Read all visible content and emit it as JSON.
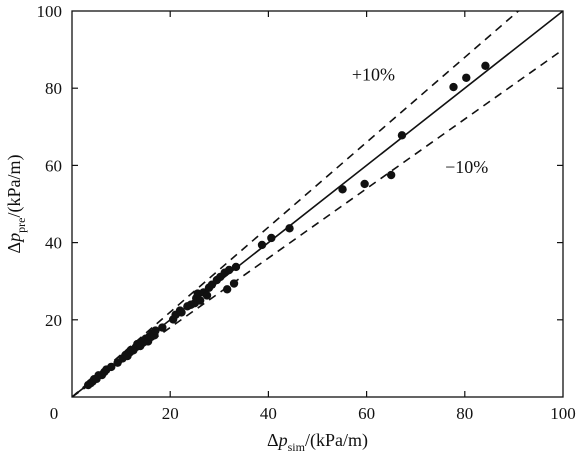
{
  "chart_data": {
    "type": "scatter",
    "title": "",
    "xlabel": {
      "prefix": "Δ",
      "var": "p",
      "sub": "sim",
      "suffix": "/(kPa/m)"
    },
    "ylabel": {
      "prefix": "Δ",
      "var": "p",
      "sub": "pre",
      "suffix": "/(kPa/m)"
    },
    "xlim": [
      0,
      100
    ],
    "ylim": [
      0,
      100
    ],
    "xticks": [
      0,
      20,
      40,
      60,
      80,
      100
    ],
    "yticks": [
      20,
      40,
      60,
      80,
      100
    ],
    "origin_label": "0",
    "grid": false,
    "reference_lines": [
      {
        "name": "y=x",
        "slope": 1.0,
        "style": "solid",
        "label": ""
      },
      {
        "name": "plus10",
        "slope": 1.1,
        "style": "dashed",
        "label": "+10%",
        "label_at": [
          57,
          82
        ]
      },
      {
        "name": "minus10",
        "slope": 0.9,
        "style": "dashed",
        "label": "−10%",
        "label_at": [
          76,
          58
        ]
      }
    ],
    "points": [
      [
        3.3,
        3.1
      ],
      [
        3.8,
        3.6
      ],
      [
        4.2,
        4.0
      ],
      [
        4.5,
        4.6
      ],
      [
        5.0,
        4.7
      ],
      [
        5.4,
        5.6
      ],
      [
        6.1,
        5.7
      ],
      [
        6.6,
        6.5
      ],
      [
        7.0,
        7.1
      ],
      [
        8.0,
        7.8
      ],
      [
        9.3,
        8.9
      ],
      [
        10.3,
        10.0
      ],
      [
        10.9,
        10.9
      ],
      [
        11.3,
        10.6
      ],
      [
        11.8,
        11.6
      ],
      [
        12.0,
        12.2
      ],
      [
        12.5,
        12.1
      ],
      [
        13.0,
        12.9
      ],
      [
        13.3,
        13.7
      ],
      [
        13.9,
        13.2
      ],
      [
        14.4,
        14.4
      ],
      [
        15.0,
        15.1
      ],
      [
        15.5,
        14.4
      ],
      [
        15.8,
        15.7
      ],
      [
        16.3,
        16.4
      ],
      [
        16.8,
        16.0
      ],
      [
        17.0,
        17.2
      ],
      [
        18.4,
        18.0
      ],
      [
        20.6,
        20.1
      ],
      [
        21.1,
        21.3
      ],
      [
        22.0,
        22.4
      ],
      [
        22.3,
        21.9
      ],
      [
        23.5,
        23.5
      ],
      [
        24.2,
        23.9
      ],
      [
        25.0,
        24.3
      ],
      [
        25.3,
        25.6
      ],
      [
        25.6,
        26.8
      ],
      [
        26.1,
        25.0
      ],
      [
        26.8,
        27.1
      ],
      [
        27.5,
        26.3
      ],
      [
        27.9,
        28.3
      ],
      [
        28.5,
        29.1
      ],
      [
        29.5,
        30.3
      ],
      [
        30.2,
        31.1
      ],
      [
        31.1,
        32.2
      ],
      [
        31.6,
        27.9
      ],
      [
        32.0,
        32.9
      ],
      [
        33.0,
        29.4
      ],
      [
        33.4,
        33.7
      ],
      [
        38.7,
        39.4
      ],
      [
        40.6,
        41.2
      ],
      [
        44.3,
        43.7
      ],
      [
        55.1,
        53.8
      ],
      [
        59.6,
        55.2
      ],
      [
        65.0,
        57.5
      ],
      [
        67.2,
        67.8
      ],
      [
        77.7,
        80.3
      ],
      [
        80.3,
        82.7
      ],
      [
        84.2,
        85.8
      ]
    ]
  }
}
